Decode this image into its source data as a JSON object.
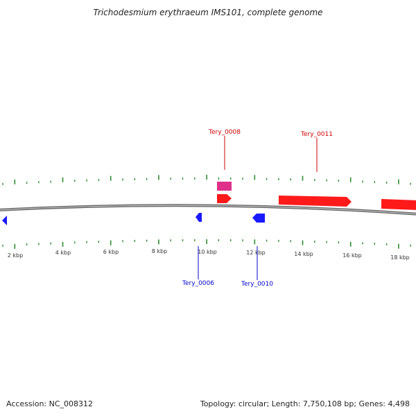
{
  "title": "Trichodesmium erythraeum IMS101, complete genome",
  "footer": {
    "accession": "Accession: NC_008312",
    "summary": "Topology: circular; Length: 7,750,108 bp; Genes: 4,498"
  },
  "colors": {
    "backbone": "#7a7a7a",
    "ticks": "#2e8b2e",
    "forward_gene": "#ff1a1a",
    "reverse_gene": "#1a1aff",
    "rna_gene": "#e0318a",
    "forward_label": "#cc0000",
    "reverse_label": "#0000cc"
  },
  "scale_labels": [
    "2 kbp",
    "4 kbp",
    "6 kbp",
    "8 kbp",
    "10 kbp",
    "12 kbp",
    "14 kbp",
    "16 kbp",
    "18 kbp"
  ],
  "genes_labeled": [
    {
      "name": "Tery_0008",
      "strand": "forward"
    },
    {
      "name": "Tery_0011",
      "strand": "forward"
    },
    {
      "name": "Tery_0006",
      "strand": "reverse"
    },
    {
      "name": "Tery_0010",
      "strand": "reverse"
    }
  ]
}
